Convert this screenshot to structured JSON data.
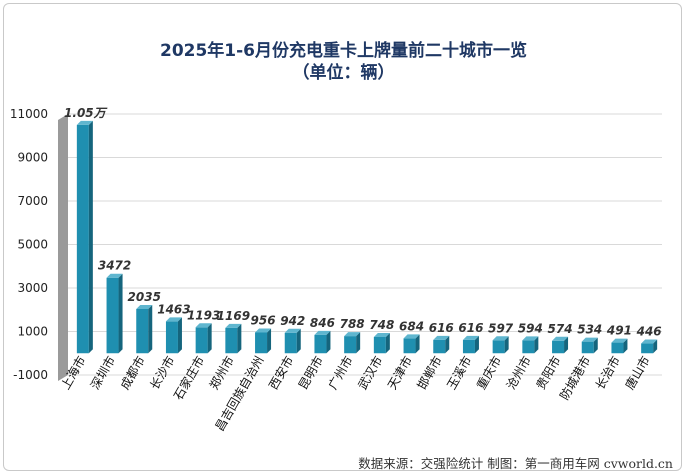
{
  "chart_data": {
    "type": "bar",
    "title": "2025年1-6月份充电重卡上牌量前二十城市一览",
    "subtitle": "（单位：辆）",
    "categories": [
      "上海市",
      "深圳市",
      "成都市",
      "长沙市",
      "石家庄市",
      "郑州市",
      "昌吉回族自治州",
      "西安市",
      "昆明市",
      "广州市",
      "武汉市",
      "天津市",
      "邯郸市",
      "玉溪市",
      "重庆市",
      "沧州市",
      "贵阳市",
      "防城港市",
      "长治市",
      "唐山市"
    ],
    "values": [
      10500,
      3472,
      2035,
      1463,
      1193,
      1169,
      956,
      942,
      846,
      788,
      748,
      684,
      616,
      616,
      597,
      594,
      574,
      534,
      491,
      446
    ],
    "data_labels": [
      "1.05万",
      "3472",
      "2035",
      "1463",
      "1193",
      "1169",
      "956",
      "942",
      "846",
      "788",
      "748",
      "684",
      "616",
      "616",
      "597",
      "594",
      "574",
      "534",
      "491",
      "446"
    ],
    "yticks": [
      -1000,
      1000,
      3000,
      5000,
      7000,
      9000,
      11000
    ],
    "ylim": [
      -1000,
      11000
    ],
    "grid": true,
    "bar_color": "#1f8fb0",
    "source": "数据来源：交强险统计   制图：第一商用车网 cvworld.cn"
  }
}
